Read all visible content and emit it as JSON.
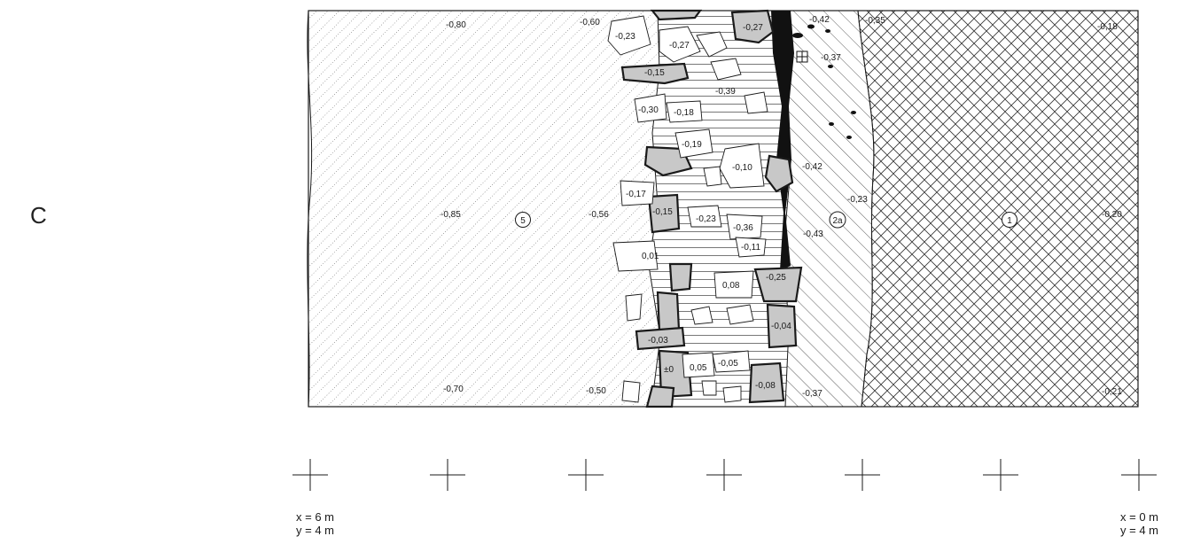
{
  "panel_label": "C",
  "layers": [
    {
      "id": "5",
      "label": "5"
    },
    {
      "id": "2a",
      "label": "2a"
    },
    {
      "id": "1",
      "label": "1"
    }
  ],
  "elevations": {
    "layer5": [
      "-0,80",
      "-0,60",
      "-0,85",
      "-0,56",
      "-0,70",
      "-0,50"
    ],
    "stones": [
      "-0,23",
      "-0,27",
      "-0,27",
      "-0,15",
      "-0,39",
      "-0,30",
      "-0,18",
      "-0,19",
      "-0,10",
      "-0,17",
      "-0,15",
      "-0,23",
      "-0,36",
      "-0,11",
      "0,01",
      "0,08",
      "-0,25",
      "-0,04",
      "-0,03",
      "±0",
      "0,05",
      "-0,05",
      "-0,08"
    ],
    "layer2a": [
      "-0,42",
      "-0,37",
      "-0,42",
      "-0,23",
      "-0,43",
      "-0,37",
      "-0,35"
    ],
    "layer1": [
      "-0,18",
      "-0,20",
      "-0,21"
    ]
  },
  "coordinates": {
    "left": {
      "x": "x = 6 m",
      "y": "y = 4 m"
    },
    "right": {
      "x": "x = 0 m",
      "y": "y = 4 m"
    }
  },
  "colors": {
    "line": "#1a1a1a",
    "shaded_stone": "#c8c8c8",
    "paper": "#ffffff"
  }
}
